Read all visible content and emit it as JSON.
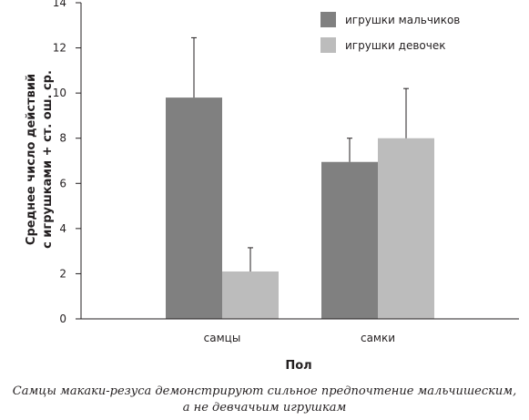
{
  "chart_data": {
    "type": "bar",
    "categories": [
      "самцы",
      "самки"
    ],
    "series": [
      {
        "name": "игрушки мальчиков",
        "values": [
          9.8,
          6.95
        ],
        "errors": [
          2.65,
          1.05
        ],
        "color": "#808080"
      },
      {
        "name": "игрушки девочек",
        "values": [
          2.1,
          8.0
        ],
        "errors": [
          1.05,
          2.2
        ],
        "color": "#bcbcbc"
      }
    ],
    "xlabel": "Пол",
    "ylabel": [
      "Среднее число действий",
      "с игрушками + ст. ош. ср."
    ],
    "ylim": [
      0,
      14
    ],
    "yticks": [
      0,
      2,
      4,
      6,
      8,
      10,
      12,
      14
    ],
    "grid": false,
    "legend": "top-right",
    "error_bars": "upper"
  },
  "caption": {
    "line1": "Самцы макаки-резуса демонстрируют сильное предпочтение мальчишеским,",
    "line2": "а не девчачьим игрушкам"
  }
}
